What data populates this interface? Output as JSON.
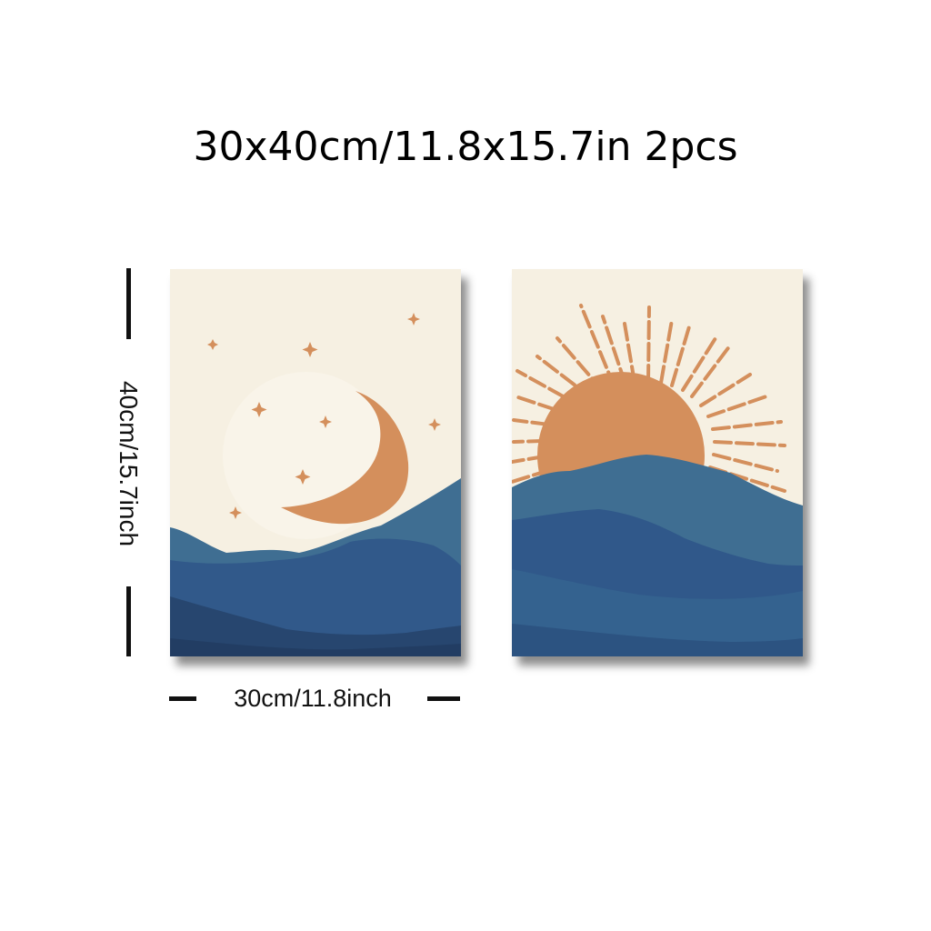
{
  "title": "30x40cm/11.8x15.7in 2pcs",
  "dimensions": {
    "height_label": "40cm/15.7inch",
    "width_label": "30cm/11.8inch"
  },
  "panels": [
    {
      "subject": "crescent-moon-stars-over-mountains"
    },
    {
      "subject": "rising-sun-over-mountains"
    }
  ],
  "colors": {
    "background": "#ffffff",
    "canvas_cream": "#f6f0e2",
    "accent_orange": "#d48f5c",
    "mountain_light": "#3f6e92",
    "mountain_mid": "#2e5783",
    "mountain_dark": "#27466f",
    "text": "#111111"
  }
}
